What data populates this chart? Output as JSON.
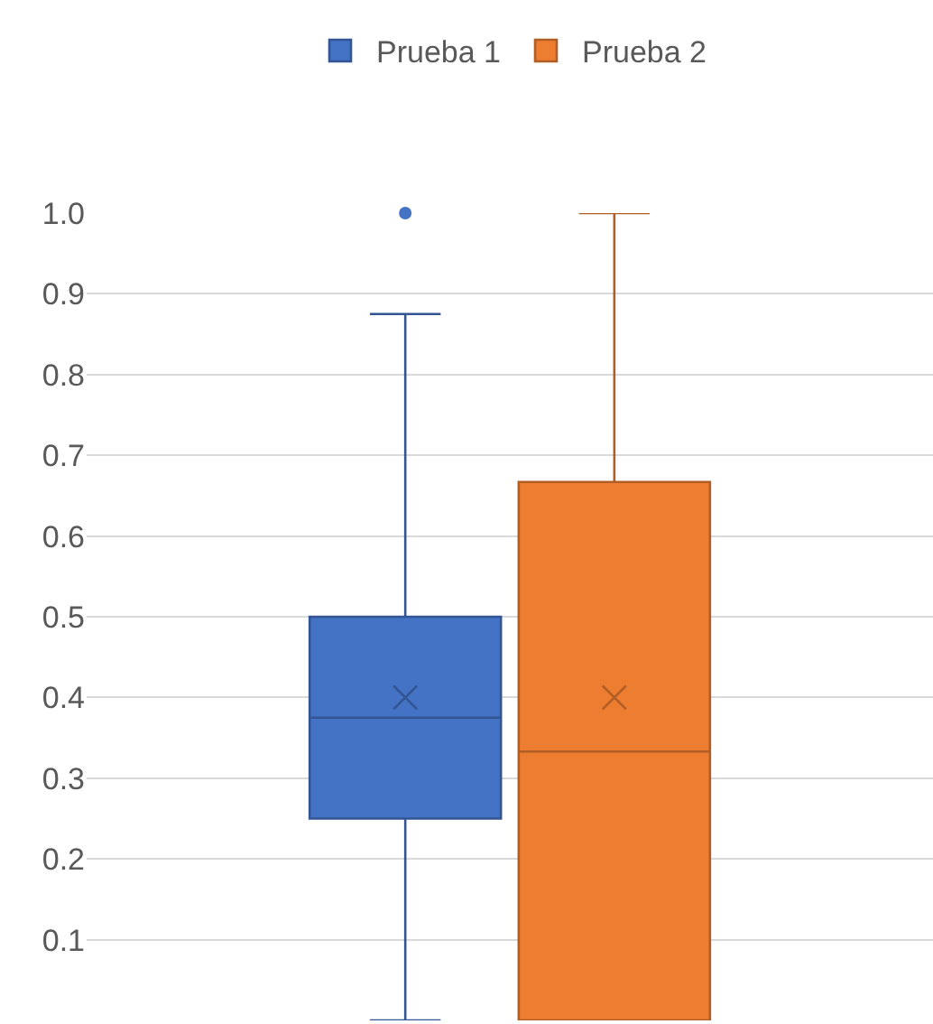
{
  "chart_data": {
    "type": "box",
    "categories": [
      null
    ],
    "series": [
      {
        "name": "Prueba 1",
        "color": "#4472c4",
        "boxes": [
          {
            "low": 0,
            "q1": 0.25,
            "median": 0.375,
            "q3": 0.5,
            "high": 0.875,
            "mean": 0.4,
            "outliers": [
              1.0
            ]
          }
        ]
      },
      {
        "name": "Prueba 2",
        "color": "#ed7d31",
        "boxes": [
          {
            "low": 0,
            "q1": 0,
            "median": 0.333,
            "q3": 0.667,
            "high": 1.0,
            "mean": 0.4
          }
        ]
      }
    ],
    "ylim": [
      0,
      1
    ],
    "yticks": [
      0.1,
      0.2,
      0.3,
      0.4,
      0.5,
      0.6,
      0.7,
      0.8,
      0.9,
      {
        "value": 1,
        "label": "1.0"
      }
    ],
    "grid": "y",
    "legend": "top"
  }
}
